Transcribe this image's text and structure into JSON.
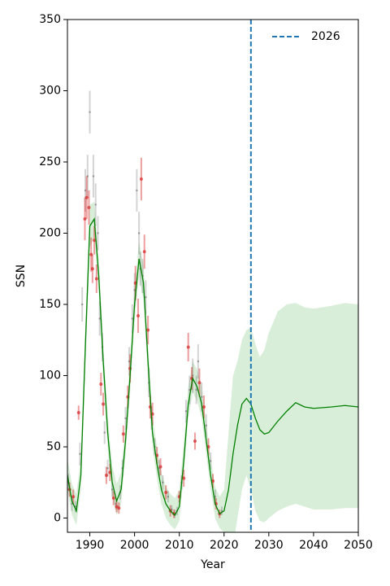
{
  "chart_data": {
    "type": "line",
    "xlabel": "Year",
    "ylabel": "SSN",
    "xlim": [
      1985,
      2050
    ],
    "xticks": [
      1990,
      2000,
      2010,
      2020,
      2030,
      2040,
      2050
    ],
    "ylim": [
      -10,
      350
    ],
    "yticks": [
      0,
      50,
      100,
      150,
      200,
      250,
      300,
      350
    ],
    "legend": "upper right",
    "vline": 2026,
    "vline_color": "#1f77b4",
    "line": {
      "color": "#008000",
      "x": [
        1985,
        1986,
        1987,
        1988,
        1989,
        1990,
        1991,
        1992,
        1993,
        1994,
        1995,
        1996,
        1997,
        1998,
        1999,
        2000,
        2001,
        2002,
        2003,
        2004,
        2005,
        2006,
        2007,
        2008,
        2009,
        2010,
        2011,
        2012,
        2013,
        2014,
        2015,
        2016,
        2017,
        2018,
        2019,
        2020,
        2021,
        2022,
        2023,
        2024,
        2025,
        2026,
        2027,
        2028,
        2029,
        2030,
        2032,
        2034,
        2036,
        2038,
        2040,
        2044,
        2047,
        2050
      ],
      "values": [
        30,
        12,
        5,
        30,
        120,
        205,
        210,
        170,
        110,
        60,
        25,
        12,
        20,
        55,
        100,
        150,
        182,
        165,
        110,
        60,
        38,
        20,
        10,
        5,
        2,
        8,
        40,
        80,
        98,
        92,
        80,
        55,
        30,
        10,
        3,
        5,
        20,
        45,
        65,
        80,
        84,
        80,
        70,
        62,
        59,
        60,
        68,
        75,
        81,
        78,
        77,
        78,
        79,
        78
      ],
      "lower": [
        20,
        2,
        -5,
        20,
        105,
        190,
        198,
        158,
        98,
        48,
        15,
        2,
        10,
        45,
        88,
        138,
        170,
        153,
        98,
        50,
        28,
        10,
        0,
        -5,
        -8,
        -2,
        30,
        70,
        88,
        82,
        70,
        45,
        20,
        0,
        -7,
        -10,
        -20,
        -20,
        0,
        20,
        30,
        20,
        5,
        -2,
        -3,
        0,
        5,
        8,
        10,
        8,
        6,
        6,
        7,
        7
      ],
      "upper": [
        42,
        24,
        17,
        42,
        135,
        220,
        222,
        182,
        122,
        72,
        37,
        24,
        32,
        67,
        112,
        162,
        194,
        177,
        122,
        72,
        50,
        32,
        22,
        17,
        14,
        20,
        52,
        92,
        110,
        104,
        92,
        67,
        42,
        22,
        15,
        20,
        60,
        100,
        110,
        125,
        132,
        134,
        122,
        113,
        118,
        130,
        145,
        150,
        151,
        148,
        147,
        149,
        151,
        150
      ],
      "band_color": "#2ca02c"
    },
    "points": [
      {
        "color": "#555555",
        "x": [
          1985.2,
          1986,
          1986.8,
          1987.8,
          1988.3,
          1989,
          1989.5,
          1990,
          1990.8,
          1991.3,
          1991.8,
          1992.2,
          1992.8,
          1993.3,
          1994,
          1995,
          1995.8,
          1996.8,
          1997.3,
          1998,
          1998.8,
          1999.5,
          2000,
          2000.5,
          2001,
          2001.3,
          2001.8,
          2002.5,
          2003.2,
          2003.8,
          2004.5,
          2005.5,
          2006.3,
          2007.5,
          2008.3,
          2009,
          2009.5,
          2010.5,
          2011.5,
          2012.3,
          2013,
          2013.8,
          2014.2,
          2015,
          2016,
          2017,
          2018,
          2019.5
        ],
        "values": [
          25,
          10,
          8,
          45,
          150,
          230,
          240,
          285,
          240,
          220,
          200,
          140,
          120,
          60,
          35,
          20,
          10,
          18,
          35,
          70,
          110,
          140,
          160,
          230,
          200,
          175,
          170,
          155,
          95,
          70,
          50,
          35,
          25,
          15,
          6,
          3,
          5,
          25,
          75,
          90,
          100,
          90,
          110,
          85,
          65,
          40,
          15,
          5
        ],
        "errors": [
          6,
          5,
          4,
          8,
          12,
          15,
          15,
          15,
          15,
          15,
          12,
          12,
          10,
          8,
          6,
          5,
          4,
          5,
          6,
          8,
          10,
          10,
          12,
          15,
          15,
          12,
          12,
          12,
          10,
          8,
          6,
          6,
          5,
          4,
          3,
          3,
          3,
          5,
          8,
          10,
          12,
          10,
          12,
          10,
          8,
          6,
          5,
          3
        ]
      },
      {
        "color": "#d62728",
        "x": [
          1985.5,
          1986.3,
          1987.5,
          1988.9,
          1989.3,
          1989.8,
          1990.3,
          1990.6,
          1991,
          1991.5,
          1992.5,
          1993,
          1993.7,
          1994.5,
          1995.3,
          1996,
          1996.5,
          1997.5,
          1998.5,
          1999,
          2000.2,
          2000.8,
          2001.5,
          2002.2,
          2003,
          2003.5,
          2004,
          2005,
          2005.8,
          2007,
          2008,
          2008.8,
          2010,
          2011,
          2012,
          2012.8,
          2013.5,
          2014.5,
          2015.5,
          2016.5,
          2017.5,
          2018.2,
          2019
        ],
        "values": [
          20,
          15,
          74,
          210,
          225,
          218,
          185,
          175,
          195,
          168,
          94,
          80,
          30,
          32,
          14,
          8,
          7,
          59,
          85,
          105,
          165,
          142,
          238,
          187,
          132,
          78,
          73,
          44,
          36,
          18,
          5,
          3,
          15,
          28,
          120,
          98,
          54,
          95,
          78,
          50,
          26,
          10,
          3
        ],
        "errors": [
          5,
          5,
          5,
          15,
          15,
          12,
          12,
          10,
          10,
          10,
          8,
          8,
          6,
          6,
          5,
          4,
          4,
          6,
          8,
          10,
          12,
          12,
          15,
          12,
          10,
          8,
          8,
          6,
          6,
          5,
          4,
          3,
          4,
          6,
          10,
          8,
          6,
          10,
          8,
          6,
          5,
          4,
          3
        ]
      }
    ]
  }
}
